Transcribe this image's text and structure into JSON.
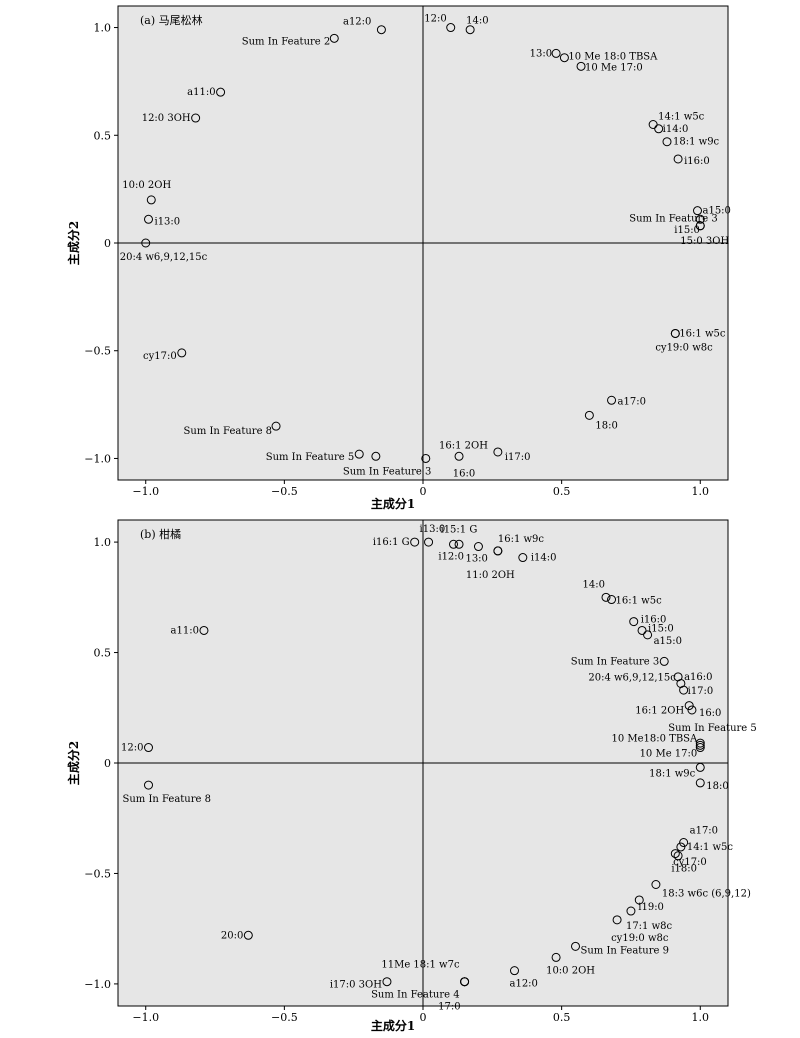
{
  "chart_data": [
    {
      "type": "scatter",
      "title": "(a) 马尾松林",
      "xlabel": "主成分1",
      "ylabel": "主成分2",
      "xlim": [
        -1.1,
        1.1
      ],
      "ylim": [
        -1.1,
        1.1
      ],
      "xticks": [
        "−1.0",
        "−0.5",
        "0",
        "0.5",
        "1.0"
      ],
      "yticks": [
        "1.0",
        "0.5",
        "0",
        "−0.5",
        "−1.0"
      ],
      "points": [
        {
          "label": "a12:0",
          "x": -0.15,
          "y": 0.99
        },
        {
          "label": "Sum In Feature 2",
          "x": -0.32,
          "y": 0.95
        },
        {
          "label": "12:0",
          "x": 0.1,
          "y": 1.0
        },
        {
          "label": "14:0",
          "x": 0.17,
          "y": 0.99
        },
        {
          "label": "13:0",
          "x": 0.48,
          "y": 0.88
        },
        {
          "label": "10 Me 18:0 TBSA",
          "x": 0.51,
          "y": 0.86
        },
        {
          "label": "10 Me 17:0",
          "x": 0.57,
          "y": 0.82
        },
        {
          "label": "a11:0",
          "x": -0.73,
          "y": 0.7
        },
        {
          "label": "12:0 3OH",
          "x": -0.82,
          "y": 0.58
        },
        {
          "label": "14:1 w5c",
          "x": 0.83,
          "y": 0.55
        },
        {
          "label": "i14:0",
          "x": 0.85,
          "y": 0.53
        },
        {
          "label": "18:1 w9c",
          "x": 0.88,
          "y": 0.47
        },
        {
          "label": "i16:0",
          "x": 0.92,
          "y": 0.39
        },
        {
          "label": "10:0 2OH",
          "x": -0.98,
          "y": 0.2
        },
        {
          "label": "i13:0",
          "x": -0.99,
          "y": 0.11
        },
        {
          "label": "a15:0",
          "x": 0.99,
          "y": 0.15
        },
        {
          "label": "Sum In Feature 3",
          "x": 1.0,
          "y": 0.11
        },
        {
          "label": "i15:0",
          "x": 1.0,
          "y": 0.08
        },
        {
          "label": "15:0 3OH",
          "x": 1.0,
          "y": 0.08
        },
        {
          "label": "20:4 w6,9,12,15c",
          "x": -1.0,
          "y": 0.0
        },
        {
          "label": "16:1 w5c",
          "x": 0.91,
          "y": -0.42
        },
        {
          "label": "cy19:0 w8c",
          "x": 0.91,
          "y": -0.42
        },
        {
          "label": "cy17:0",
          "x": -0.87,
          "y": -0.51
        },
        {
          "label": "a17:0",
          "x": 0.68,
          "y": -0.73
        },
        {
          "label": "18:0",
          "x": 0.6,
          "y": -0.8
        },
        {
          "label": "Sum In Feature 8",
          "x": -0.53,
          "y": -0.85
        },
        {
          "label": "16:1 2OH",
          "x": 0.13,
          "y": -0.99
        },
        {
          "label": "Sum In Feature 5",
          "x": -0.23,
          "y": -0.98
        },
        {
          "label": "Sum In Feature 3",
          "x": -0.17,
          "y": -0.99
        },
        {
          "label": "16:0",
          "x": 0.01,
          "y": -1.0
        },
        {
          "label": "i17:0",
          "x": 0.27,
          "y": -0.97
        }
      ]
    },
    {
      "type": "scatter",
      "title": "(b) 柑橘",
      "xlabel": "主成分1",
      "ylabel": "主成分2",
      "xlim": [
        -1.1,
        1.1
      ],
      "ylim": [
        -1.1,
        1.1
      ],
      "xticks": [
        "−1.0",
        "−0.5",
        "0",
        "0.5",
        "1.0"
      ],
      "yticks": [
        "1.0",
        "0.5",
        "0",
        "−0.5",
        "−1.0"
      ],
      "points": [
        {
          "label": "i16:1 G",
          "x": -0.03,
          "y": 1.0
        },
        {
          "label": "i13:0",
          "x": 0.02,
          "y": 1.0
        },
        {
          "label": "i15:1 G",
          "x": 0.11,
          "y": 0.99
        },
        {
          "label": "i12:0",
          "x": 0.13,
          "y": 0.99
        },
        {
          "label": "13:0",
          "x": 0.2,
          "y": 0.98
        },
        {
          "label": "11:0 2OH",
          "x": 0.27,
          "y": 0.96
        },
        {
          "label": "16:1 w9c",
          "x": 0.27,
          "y": 0.96
        },
        {
          "label": "i14:0",
          "x": 0.36,
          "y": 0.93
        },
        {
          "label": "14:0",
          "x": 0.66,
          "y": 0.75
        },
        {
          "label": "16:1 w5c",
          "x": 0.68,
          "y": 0.74
        },
        {
          "label": "a11:0",
          "x": -0.79,
          "y": 0.6
        },
        {
          "label": "i16:0",
          "x": 0.76,
          "y": 0.64
        },
        {
          "label": "i15:0",
          "x": 0.79,
          "y": 0.6
        },
        {
          "label": "a15:0",
          "x": 0.81,
          "y": 0.58
        },
        {
          "label": "Sum In Feature 3",
          "x": 0.87,
          "y": 0.46
        },
        {
          "label": "a16:0",
          "x": 0.92,
          "y": 0.39
        },
        {
          "label": "20:4 w6,9,12,15c",
          "x": 0.93,
          "y": 0.36
        },
        {
          "label": "i17:0",
          "x": 0.94,
          "y": 0.33
        },
        {
          "label": "16:1 2OH",
          "x": 0.96,
          "y": 0.26
        },
        {
          "label": "16:0",
          "x": 0.97,
          "y": 0.24
        },
        {
          "label": "Sum In Feature 5",
          "x": 1.0,
          "y": 0.09
        },
        {
          "label": "10 Me18:0 TBSA",
          "x": 1.0,
          "y": 0.08
        },
        {
          "label": "10 Me 17:0",
          "x": 1.0,
          "y": 0.07
        },
        {
          "label": "12:0",
          "x": -0.99,
          "y": 0.07
        },
        {
          "label": "18:1 w9c",
          "x": 1.0,
          "y": -0.02
        },
        {
          "label": "Sum In Feature 8",
          "x": -0.99,
          "y": -0.1
        },
        {
          "label": "18:0",
          "x": 1.0,
          "y": -0.09
        },
        {
          "label": "a17:0",
          "x": 0.94,
          "y": -0.36
        },
        {
          "label": "14:1 w5c",
          "x": 0.93,
          "y": -0.38
        },
        {
          "label": "cy17:0",
          "x": 0.92,
          "y": -0.42
        },
        {
          "label": "i18:0",
          "x": 0.91,
          "y": -0.41
        },
        {
          "label": "18:3 w6c (6,9,12)",
          "x": 0.84,
          "y": -0.55
        },
        {
          "label": "i19:0",
          "x": 0.78,
          "y": -0.62
        },
        {
          "label": "17:1 w8c",
          "x": 0.75,
          "y": -0.67
        },
        {
          "label": "cy19:0 w8c",
          "x": 0.7,
          "y": -0.71
        },
        {
          "label": "Sum In Feature 9",
          "x": 0.55,
          "y": -0.83
        },
        {
          "label": "20:0",
          "x": -0.63,
          "y": -0.78
        },
        {
          "label": "10:0 2OH",
          "x": 0.48,
          "y": -0.88
        },
        {
          "label": "11Me 18:1 w7c",
          "x": 0.15,
          "y": -0.99
        },
        {
          "label": "a12:0",
          "x": 0.33,
          "y": -0.94
        },
        {
          "label": "i17:0 3OH",
          "x": -0.13,
          "y": -0.99
        },
        {
          "label": "Sum In Feature 4",
          "x": 0.15,
          "y": -0.99
        },
        {
          "label": "17:0",
          "x": 0.15,
          "y": -0.99
        }
      ]
    }
  ]
}
